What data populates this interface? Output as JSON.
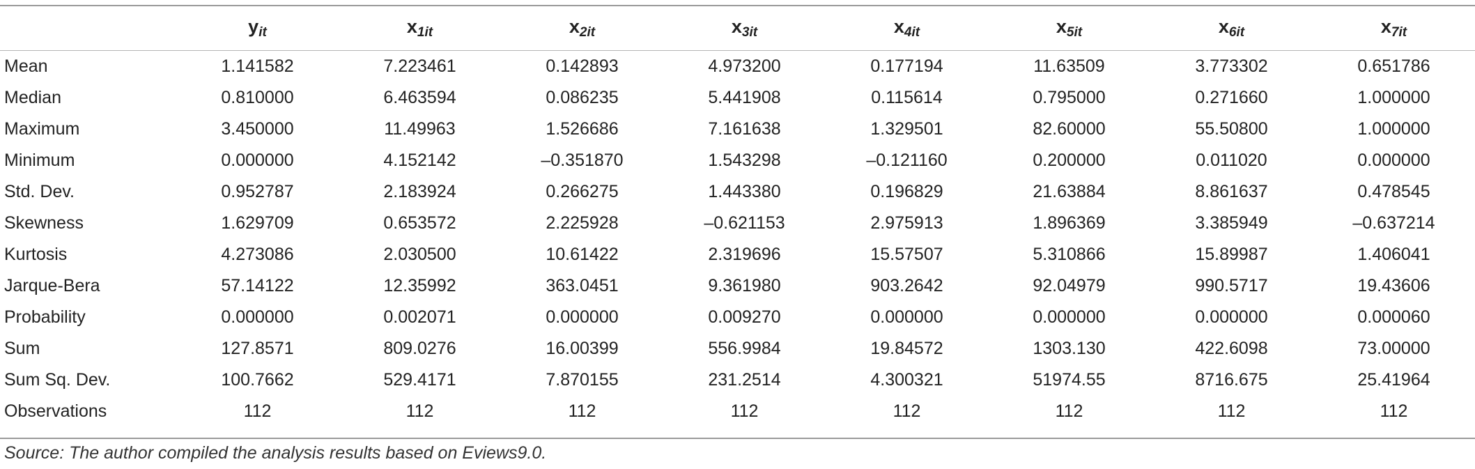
{
  "table": {
    "columns": [
      {
        "base": "y",
        "sub": "it"
      },
      {
        "base": "x",
        "sub": "1it"
      },
      {
        "base": "x",
        "sub": "2it"
      },
      {
        "base": "x",
        "sub": "3it"
      },
      {
        "base": "x",
        "sub": "4it"
      },
      {
        "base": "x",
        "sub": "5it"
      },
      {
        "base": "x",
        "sub": "6it"
      },
      {
        "base": "x",
        "sub": "7it"
      }
    ],
    "rows": [
      {
        "label": "Mean",
        "values": [
          "1.141582",
          "7.223461",
          "0.142893",
          "4.973200",
          "0.177194",
          "11.63509",
          "3.773302",
          "0.651786"
        ]
      },
      {
        "label": "Median",
        "values": [
          "0.810000",
          "6.463594",
          "0.086235",
          "5.441908",
          "0.115614",
          "0.795000",
          "0.271660",
          "1.000000"
        ]
      },
      {
        "label": "Maximum",
        "values": [
          "3.450000",
          "11.49963",
          "1.526686",
          "7.161638",
          "1.329501",
          "82.60000",
          "55.50800",
          "1.000000"
        ]
      },
      {
        "label": "Minimum",
        "values": [
          "0.000000",
          "4.152142",
          "–0.351870",
          "1.543298",
          "–0.121160",
          "0.200000",
          "0.011020",
          "0.000000"
        ]
      },
      {
        "label": "Std. Dev.",
        "values": [
          "0.952787",
          "2.183924",
          "0.266275",
          "1.443380",
          "0.196829",
          "21.63884",
          "8.861637",
          "0.478545"
        ]
      },
      {
        "label": "Skewness",
        "values": [
          "1.629709",
          "0.653572",
          "2.225928",
          "–0.621153",
          "2.975913",
          "1.896369",
          "3.385949",
          "–0.637214"
        ]
      },
      {
        "label": "Kurtosis",
        "values": [
          "4.273086",
          "2.030500",
          "10.61422",
          "2.319696",
          "15.57507",
          "5.310866",
          "15.89987",
          "1.406041"
        ]
      },
      {
        "label": "Jarque-Bera",
        "values": [
          "57.14122",
          "12.35992",
          "363.0451",
          "9.361980",
          "903.2642",
          "92.04979",
          "990.5717",
          "19.43606"
        ]
      },
      {
        "label": "Probability",
        "values": [
          "0.000000",
          "0.002071",
          "0.000000",
          "0.009270",
          "0.000000",
          "0.000000",
          "0.000000",
          "0.000060"
        ]
      },
      {
        "label": "Sum",
        "values": [
          "127.8571",
          "809.0276",
          "16.00399",
          "556.9984",
          "19.84572",
          "1303.130",
          "422.6098",
          "73.00000"
        ]
      },
      {
        "label": "Sum Sq. Dev.",
        "values": [
          "100.7662",
          "529.4171",
          "7.870155",
          "231.2514",
          "4.300321",
          "51974.55",
          "8716.675",
          "25.41964"
        ]
      },
      {
        "label": "Observations",
        "values": [
          "112",
          "112",
          "112",
          "112",
          "112",
          "112",
          "112",
          "112"
        ]
      }
    ]
  },
  "source": "Source: The author compiled the analysis results based on Eviews9.0."
}
